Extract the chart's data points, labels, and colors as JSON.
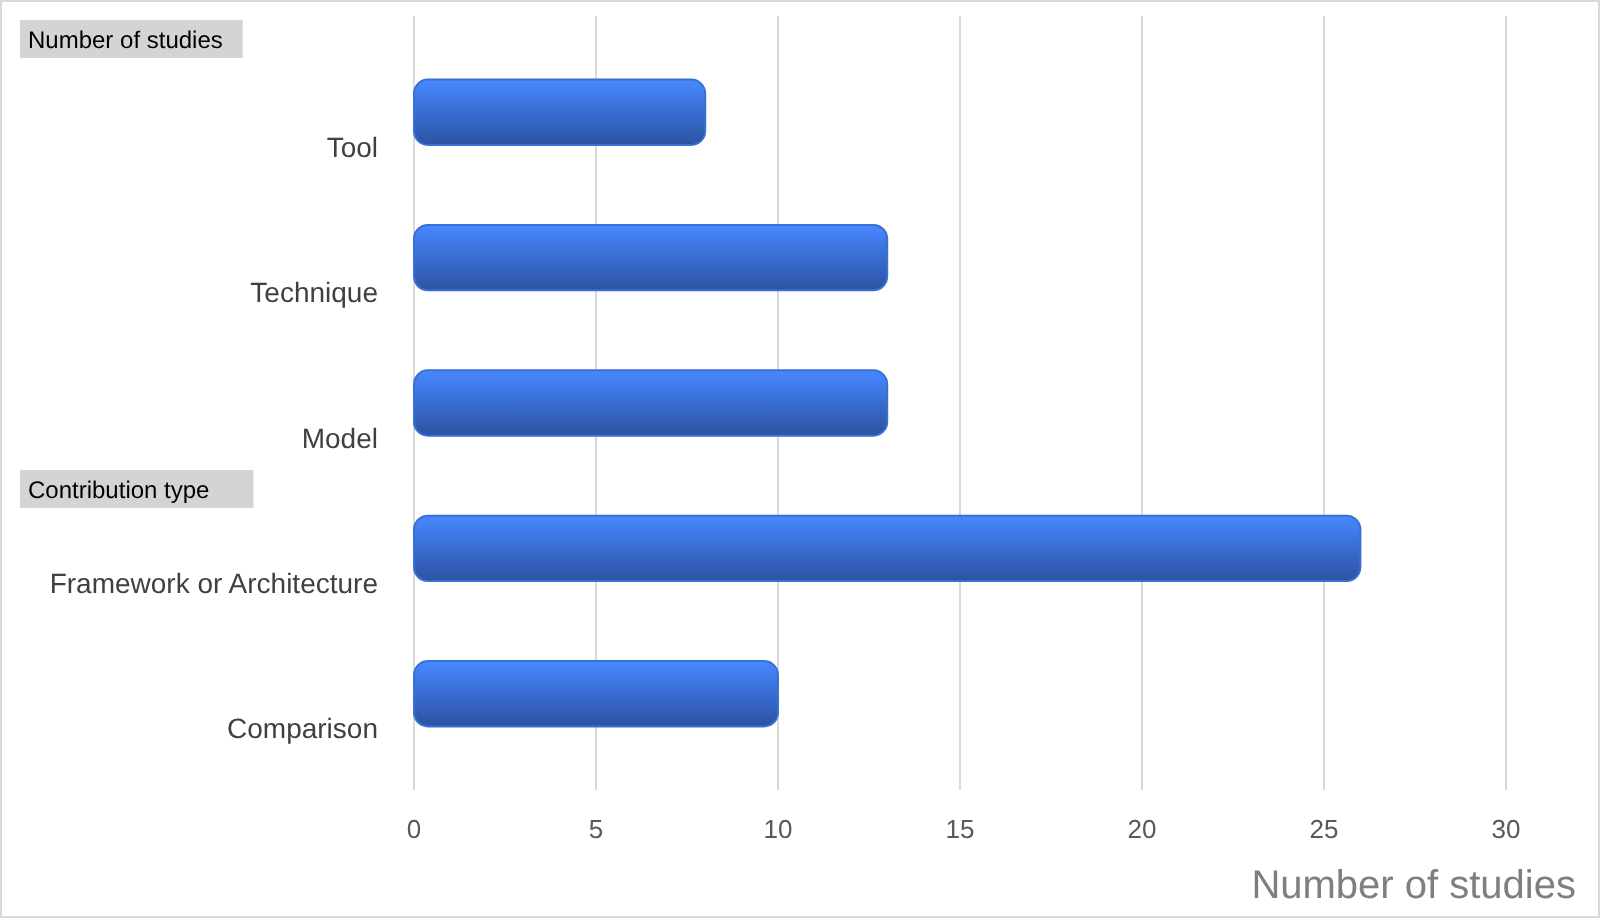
{
  "chart_data": {
    "type": "bar",
    "orientation": "horizontal",
    "xlabel": "Number of studies",
    "categories": [
      "Tool",
      "Technique",
      "Model",
      "Framework or Architecture",
      "Comparison"
    ],
    "values": [
      8,
      13,
      13,
      26,
      10
    ],
    "color": "#3a6fd6",
    "xlim": [
      0,
      30
    ],
    "xticks": [
      0,
      5,
      10,
      15,
      20,
      25,
      30
    ],
    "grid": "x",
    "annotations": [
      "Number of studies",
      "Contribution type"
    ]
  }
}
